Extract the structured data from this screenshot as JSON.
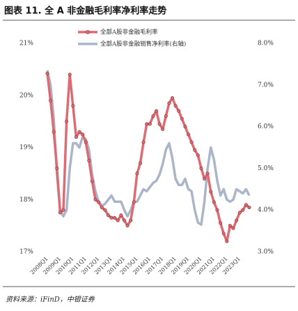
{
  "chart_data": {
    "type": "line",
    "title": "图表 11. 全 A 非金融毛利率净利率走势",
    "source": "资料来源：iFinD，中银证券",
    "categories": [
      "2008Q1",
      null,
      null,
      null,
      "2009Q1",
      null,
      null,
      null,
      "2010Q1",
      null,
      null,
      null,
      "2011Q1",
      null,
      null,
      null,
      "2012Q1",
      null,
      null,
      null,
      "2013Q1",
      null,
      null,
      null,
      "2014Q1",
      null,
      null,
      null,
      "2015Q1",
      null,
      null,
      null,
      "2016Q1",
      null,
      null,
      null,
      "2017Q1",
      null,
      null,
      null,
      "2018Q1",
      null,
      null,
      null,
      "2019Q1",
      null,
      null,
      null,
      "2020Q1",
      null,
      null,
      null,
      "2021Q1",
      null,
      null,
      null,
      "2022Q1",
      null,
      null,
      null,
      "2023Q1",
      null,
      null,
      null
    ],
    "series": [
      {
        "name": "全部A股非金融毛利率",
        "color": "#dc6b73",
        "marker": true,
        "values": [
          20.42,
          19.9,
          19.3,
          18.6,
          17.75,
          17.8,
          19.5,
          20.4,
          19.8,
          19.2,
          19.3,
          19.25,
          19.1,
          18.75,
          18.35,
          18.0,
          17.95,
          17.85,
          17.8,
          17.7,
          17.65,
          17.65,
          17.6,
          17.7,
          17.6,
          17.5,
          17.6,
          17.95,
          18.5,
          18.7,
          19.1,
          19.45,
          19.45,
          19.6,
          19.7,
          19.45,
          19.35,
          19.6,
          19.85,
          19.95,
          19.8,
          19.7,
          19.55,
          19.4,
          19.25,
          19.1,
          18.95,
          18.85,
          18.6,
          18.4,
          18.5,
          18.15,
          17.95,
          17.8,
          17.55,
          17.35,
          17.2,
          17.5,
          17.45,
          17.6,
          17.75,
          17.8,
          17.9,
          17.85
        ]
      },
      {
        "name": "全部A股非金融销售净利率(右轴)",
        "color": "#aab5c9",
        "axis": "y2",
        "marker": false,
        "values": [
          7.35,
          7.0,
          6.2,
          4.85,
          4.0,
          3.85,
          4.0,
          5.0,
          5.6,
          5.6,
          5.5,
          5.75,
          5.7,
          5.45,
          4.85,
          4.45,
          4.2,
          4.1,
          4.15,
          4.25,
          4.35,
          4.2,
          4.2,
          4.2,
          4.0,
          3.85,
          4.0,
          4.2,
          4.2,
          4.35,
          4.5,
          4.45,
          4.55,
          4.65,
          4.7,
          4.85,
          5.1,
          5.45,
          5.6,
          5.25,
          4.75,
          4.6,
          4.6,
          4.75,
          4.5,
          4.45,
          4.0,
          3.7,
          3.65,
          4.2,
          5.0,
          5.5,
          5.2,
          4.7,
          4.35,
          4.5,
          4.25,
          4.2,
          4.25,
          4.5,
          4.45,
          4.4,
          4.5,
          4.35
        ]
      }
    ],
    "ylim": [
      17,
      21
    ],
    "yticks": [
      {
        "value": 17,
        "label": "17%"
      },
      {
        "value": 18,
        "label": "18%"
      },
      {
        "value": 19,
        "label": "19%"
      },
      {
        "value": 20,
        "label": "20%"
      },
      {
        "value": 21,
        "label": "21%"
      }
    ],
    "y2lim": [
      3,
      8
    ],
    "y2ticks": [
      {
        "value": 3,
        "label": "3.0%"
      },
      {
        "value": 4,
        "label": "4.0%"
      },
      {
        "value": 5,
        "label": "5.0%"
      },
      {
        "value": 6,
        "label": "6.0%"
      },
      {
        "value": 7,
        "label": "7.0%"
      },
      {
        "value": 8,
        "label": "8.0%"
      }
    ],
    "legend": "upper right"
  }
}
